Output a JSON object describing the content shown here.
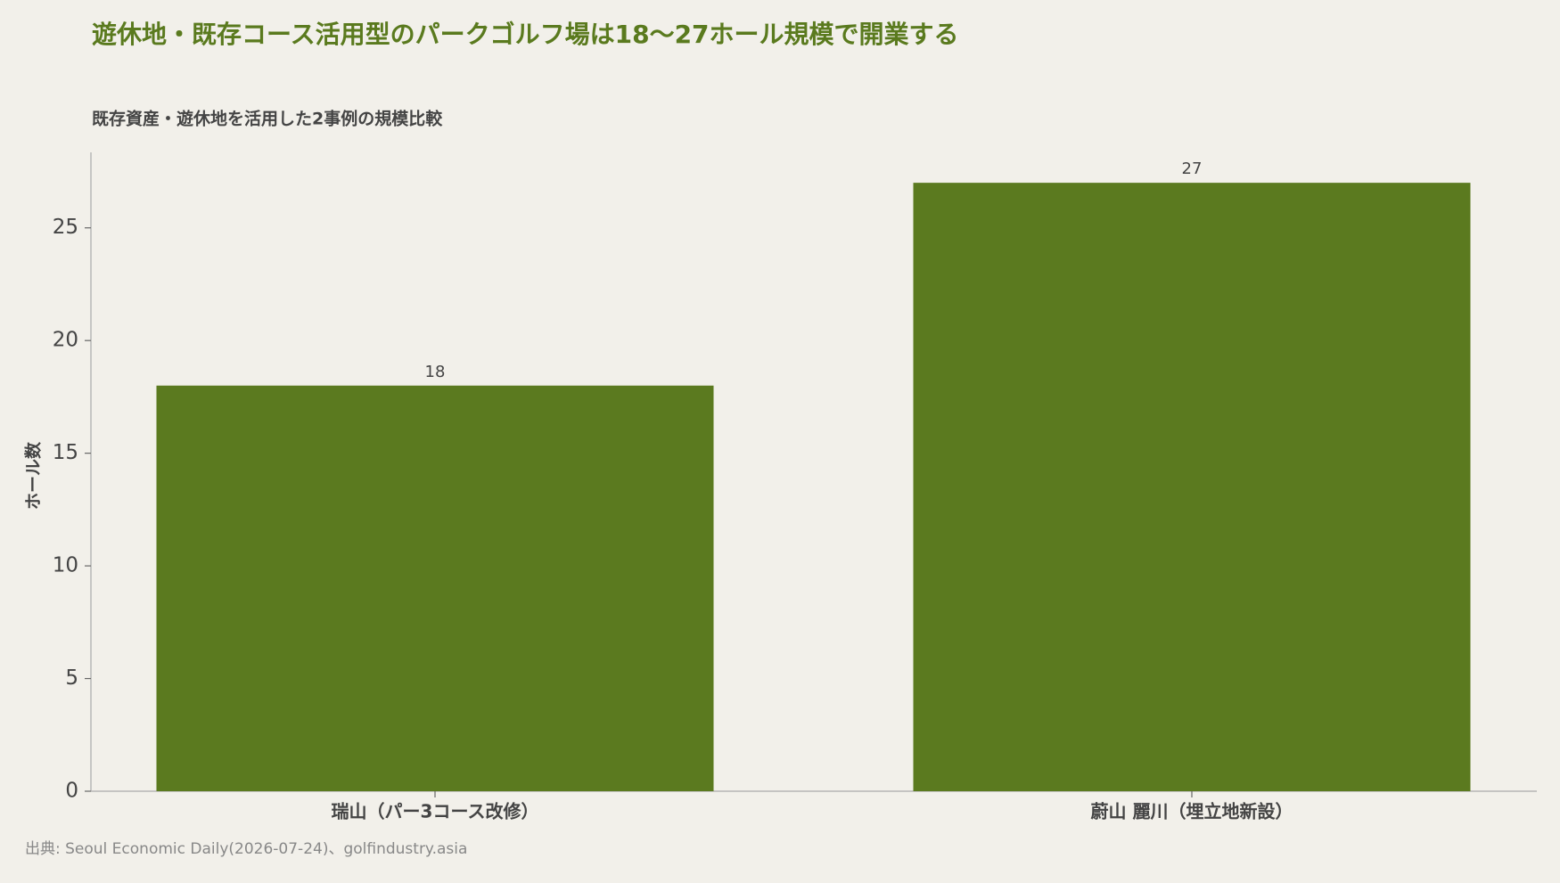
{
  "chart_data": {
    "type": "bar",
    "title": "遊休地・既存コース活用型のパークゴルフ場は18〜27ホール規模で開業する",
    "subtitle": "既存資産・遊休地を活用した2事例の規模比較",
    "y_label": "ホール数",
    "categories": [
      "瑞山（パー3コース改修）",
      "蔚山 麗川（埋立地新設）"
    ],
    "values": [
      18,
      27
    ],
    "color": "#5b7a1f",
    "ylim": [
      0,
      28.35
    ],
    "yticks": [
      0,
      5,
      10,
      15,
      20,
      25
    ],
    "grid": false,
    "source": "出典: Seoul Economic Daily(2026-07-24)、golfindustry.asia"
  }
}
